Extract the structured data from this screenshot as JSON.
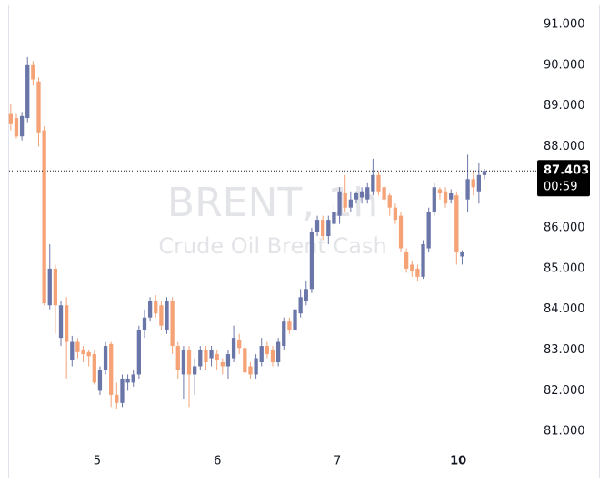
{
  "chart_data": {
    "type": "candlestick",
    "watermark_symbol": "BRENT, 1h",
    "watermark_description": "Crude Oil Brent Cash",
    "up_color": "#6b76a8",
    "down_color": "#f4a276",
    "ylim": [
      80.67,
      91.49
    ],
    "yticks": [
      {
        "value": 81,
        "label": "81.000"
      },
      {
        "value": 82,
        "label": "82.000"
      },
      {
        "value": 83,
        "label": "83.000"
      },
      {
        "value": 84,
        "label": "84.000"
      },
      {
        "value": 85,
        "label": "85.000"
      },
      {
        "value": 86,
        "label": "86.000"
      },
      {
        "value": 87,
        "label": "87.000"
      },
      {
        "value": 88,
        "label": "88.000"
      },
      {
        "value": 89,
        "label": "89.000"
      },
      {
        "value": 90,
        "label": "90.000"
      },
      {
        "value": 91,
        "label": "91.000"
      }
    ],
    "xlim": [
      -0.3,
      94.3
    ],
    "xticks": [
      {
        "value": 15.5,
        "label": "5"
      },
      {
        "value": 37.1,
        "label": "6"
      },
      {
        "value": 58.6,
        "label": "7"
      },
      {
        "value": 80.3,
        "label": "10"
      }
    ],
    "last_price": 87.403,
    "countdown": "00:59",
    "open": [
      88.8,
      88.7,
      88.25,
      88.7,
      90.0,
      89.6,
      88.4,
      84.1,
      85.0,
      83.3,
      84.1,
      82.75,
      83.2,
      83.0,
      82.95,
      82.9,
      82.0,
      82.5,
      83.15,
      81.9,
      81.7,
      82.2,
      82.2,
      82.4,
      83.5,
      83.8,
      84.2,
      84.1,
      83.5,
      84.2,
      83.1,
      82.4,
      83.0,
      82.4,
      82.6,
      83.0,
      82.8,
      82.9,
      82.7,
      82.6,
      82.8,
      83.25,
      83.05,
      82.6,
      82.4,
      82.7,
      83.1,
      83.0,
      82.7,
      83.1,
      83.7,
      83.5,
      83.9,
      84.2,
      84.5,
      85.9,
      86.2,
      85.8,
      86.1,
      86.3,
      86.85,
      86.5,
      86.7,
      86.75,
      86.7,
      86.9,
      87.3,
      87.0,
      86.8,
      86.5,
      86.3,
      85.4,
      85.1,
      85.0,
      84.8,
      85.5,
      86.4,
      86.95,
      86.9,
      86.7,
      86.8,
      85.3,
      86.7,
      87.2,
      86.9,
      87.3
    ],
    "high": [
      89.05,
      88.8,
      88.85,
      90.2,
      90.1,
      89.7,
      88.5,
      85.6,
      85.1,
      84.2,
      84.3,
      83.35,
      83.3,
      83.1,
      83.0,
      83.0,
      82.6,
      83.2,
      83.2,
      82.2,
      82.4,
      82.4,
      82.5,
      83.6,
      84.0,
      84.3,
      84.35,
      84.2,
      84.3,
      84.3,
      83.2,
      83.1,
      83.1,
      82.8,
      83.1,
      83.1,
      83.1,
      83.0,
      82.8,
      83.0,
      83.6,
      83.4,
      83.1,
      82.7,
      82.9,
      83.3,
      83.2,
      83.1,
      83.3,
      83.8,
      83.8,
      84.1,
      84.5,
      84.7,
      86.0,
      86.3,
      86.3,
      86.3,
      86.6,
      87.0,
      87.3,
      86.9,
      86.9,
      87.0,
      87.1,
      87.7,
      87.4,
      87.05,
      86.85,
      86.6,
      86.4,
      85.5,
      85.2,
      85.1,
      85.7,
      86.5,
      87.1,
      87.0,
      87.0,
      86.95,
      86.9,
      85.45,
      87.8,
      87.4,
      87.6,
      87.45
    ],
    "low": [
      88.4,
      88.2,
      88.15,
      88.6,
      89.5,
      88.0,
      84.1,
      84.0,
      83.4,
      83.1,
      82.3,
      82.6,
      82.8,
      82.7,
      82.6,
      82.15,
      81.9,
      82.4,
      81.6,
      81.55,
      81.6,
      82.0,
      82.1,
      82.3,
      83.3,
      83.7,
      83.8,
      83.5,
      83.4,
      82.9,
      82.3,
      81.8,
      81.6,
      81.9,
      82.5,
      82.5,
      82.6,
      82.5,
      82.4,
      82.3,
      82.7,
      82.9,
      82.4,
      82.3,
      82.3,
      82.6,
      82.8,
      82.6,
      82.6,
      83.0,
      83.4,
      83.4,
      83.8,
      84.1,
      84.4,
      85.8,
      85.7,
      85.6,
      86.0,
      86.1,
      86.4,
      86.4,
      86.6,
      86.6,
      86.6,
      86.8,
      86.8,
      86.6,
      86.3,
      86.1,
      85.4,
      84.9,
      84.8,
      84.7,
      84.75,
      85.4,
      86.3,
      86.7,
      86.5,
      86.6,
      85.1,
      85.1,
      86.4,
      86.8,
      86.6,
      87.2
    ],
    "close": [
      88.55,
      88.25,
      88.75,
      90.0,
      89.65,
      88.35,
      84.15,
      85.0,
      84.1,
      84.1,
      83.2,
      83.2,
      82.95,
      82.9,
      82.85,
      82.2,
      82.5,
      83.1,
      81.9,
      81.7,
      82.3,
      82.3,
      82.4,
      83.5,
      83.8,
      84.2,
      83.9,
      83.6,
      84.2,
      83.1,
      82.5,
      83.0,
      82.4,
      82.6,
      83.0,
      82.7,
      83.0,
      82.75,
      82.6,
      82.9,
      83.3,
      83.05,
      82.45,
      82.4,
      82.8,
      83.1,
      82.9,
      82.7,
      83.2,
      83.7,
      83.5,
      84.0,
      84.3,
      84.5,
      85.9,
      86.2,
      85.8,
      86.2,
      86.4,
      86.9,
      86.5,
      86.7,
      86.85,
      86.9,
      87.0,
      87.3,
      86.9,
      86.7,
      86.5,
      86.2,
      85.5,
      85.0,
      84.95,
      84.8,
      85.6,
      86.4,
      87.0,
      86.85,
      86.6,
      86.85,
      85.4,
      85.4,
      87.2,
      87.0,
      87.3,
      87.403
    ]
  }
}
